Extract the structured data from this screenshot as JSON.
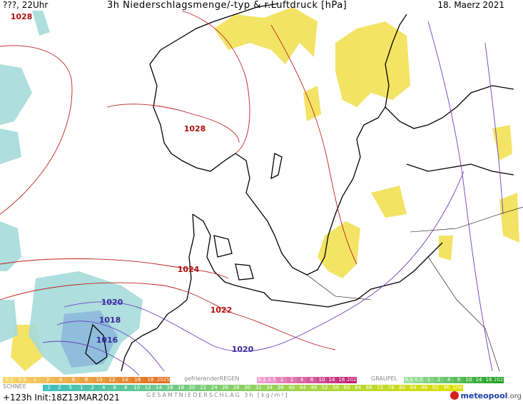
{
  "header": {
    "left_label": "???, 22Uhr",
    "title": "3h Niederschlagsmenge/-typ & r.Luftdruck [hPa]",
    "date": "18. Maerz 2021"
  },
  "isobars": [
    {
      "value": "1028"
    },
    {
      "value": "1028"
    },
    {
      "value": "1024"
    },
    {
      "value": "1022"
    },
    {
      "value": "1020"
    },
    {
      "value": "1018"
    },
    {
      "value": "1016"
    },
    {
      "value": "1020"
    }
  ],
  "legend": {
    "snow_label": "SCHNEE",
    "freezing_rain_label": "gefrierenderREGEN",
    "graupel_label": "GRAUPEL",
    "total_label": "GESAMTNIEDERSCHLAG 3h [kg/m²]",
    "rain_scale": [
      "0.1",
      "0.5",
      "1",
      "2",
      "4",
      "6",
      "8",
      "10",
      "12",
      "14",
      "16",
      "18",
      "2025+"
    ],
    "freezing_scale": [
      "0.1",
      "0.5",
      "1",
      "2",
      "4",
      "8",
      "10",
      "14",
      "16",
      "2025+"
    ],
    "graupel_scale": [
      "0.1",
      "0.5",
      "1",
      "2",
      "4",
      "8",
      "10",
      "14",
      "16",
      "2025+"
    ],
    "total_scale": [
      ".1",
      "2",
      "5",
      "1",
      "2",
      "4",
      "6",
      "8",
      "10",
      "12",
      "14",
      "16",
      "18",
      "20",
      "22",
      "24",
      "26",
      "28",
      "30",
      "32",
      "34",
      "36",
      "40",
      "44",
      "48",
      "52",
      "56",
      "60",
      "64",
      "68",
      "72",
      "76",
      "80",
      "84",
      "88",
      "92",
      "96",
      "100"
    ],
    "colors": {
      "rain": "#f2c040",
      "freezing": "#e060a0",
      "graupel": "#60c060",
      "snow": "#9fd6d6",
      "total_start": "#40c0c0",
      "total_end": "#e0e000"
    }
  },
  "run_info": "+123h  Init:18Z13MAR2021",
  "logo": {
    "main": "meteopool",
    "suffix": ".org"
  }
}
